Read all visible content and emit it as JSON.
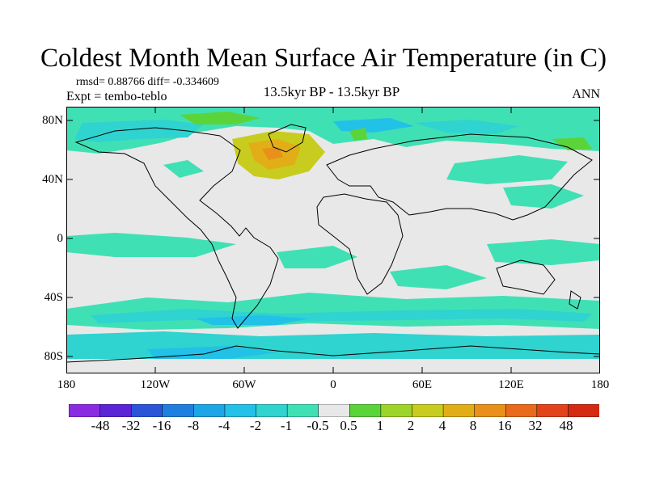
{
  "title": "Coldest Month Mean Surface Air Temperature (in C)",
  "stats": "rmsd= 0.88766 diff= -0.334609",
  "experiment": "Expt = tembo-teblo",
  "period": "13.5kyr BP - 13.5kyr BP",
  "season": "ANN",
  "lat_ticks": [
    "80N",
    "40N",
    "0",
    "40S",
    "80S"
  ],
  "lon_ticks": [
    "180",
    "120W",
    "60W",
    "0",
    "60E",
    "120E",
    "180"
  ],
  "colorbar": {
    "labels": [
      "-48",
      "-32",
      "-16",
      "-8",
      "-4",
      "-2",
      "-1",
      "-0.5",
      "0.5",
      "1",
      "2",
      "4",
      "8",
      "16",
      "32",
      "48"
    ],
    "colors": [
      "#8a2be2",
      "#5b24d6",
      "#2a55d8",
      "#1f7fe0",
      "#1ca6e6",
      "#22c1e8",
      "#2fd3cf",
      "#40e0b5",
      "#e8e8e8",
      "#5bd43a",
      "#9cd42a",
      "#c8cc1e",
      "#e2ae18",
      "#e8901a",
      "#e86a1a",
      "#e2431a",
      "#d42a12"
    ]
  }
}
